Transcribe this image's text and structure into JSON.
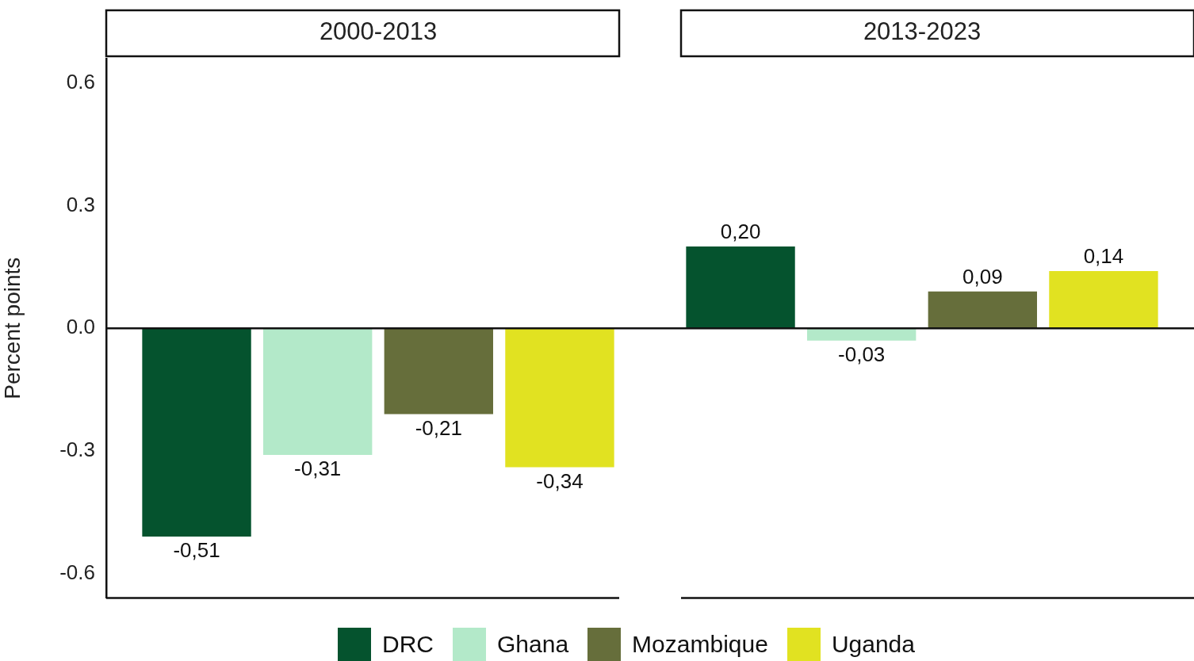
{
  "chart_data": {
    "type": "bar",
    "ylabel": "Percent points",
    "categories": [
      "2000-2013",
      "2013-2023"
    ],
    "series": [
      {
        "name": "DRC",
        "color": "#05532e",
        "values": [
          -0.51,
          0.2
        ],
        "value_labels": [
          "-0,51",
          "0,20"
        ]
      },
      {
        "name": "Ghana",
        "color": "#b3e9c9",
        "values": [
          -0.31,
          -0.03
        ],
        "value_labels": [
          "-0,31",
          "-0,03"
        ]
      },
      {
        "name": "Mozambique",
        "color": "#666e3b",
        "values": [
          -0.21,
          0.09
        ],
        "value_labels": [
          "-0,21",
          "0,09"
        ]
      },
      {
        "name": "Uganda",
        "color": "#e1e221",
        "values": [
          -0.34,
          0.14
        ],
        "value_labels": [
          "-0,34",
          "0,14"
        ]
      }
    ],
    "ylim": [
      -0.66,
      0.66
    ],
    "yticks": [
      {
        "value": -0.6,
        "label": "-0.6"
      },
      {
        "value": -0.3,
        "label": "-0.3"
      },
      {
        "value": 0,
        "label": "0.0"
      },
      {
        "value": 0.3,
        "label": "0.3"
      },
      {
        "value": 0.6,
        "label": "0.6"
      }
    ],
    "ref_lines": [
      {
        "axis": "y",
        "value": 0
      }
    ],
    "legend": "bottom"
  }
}
